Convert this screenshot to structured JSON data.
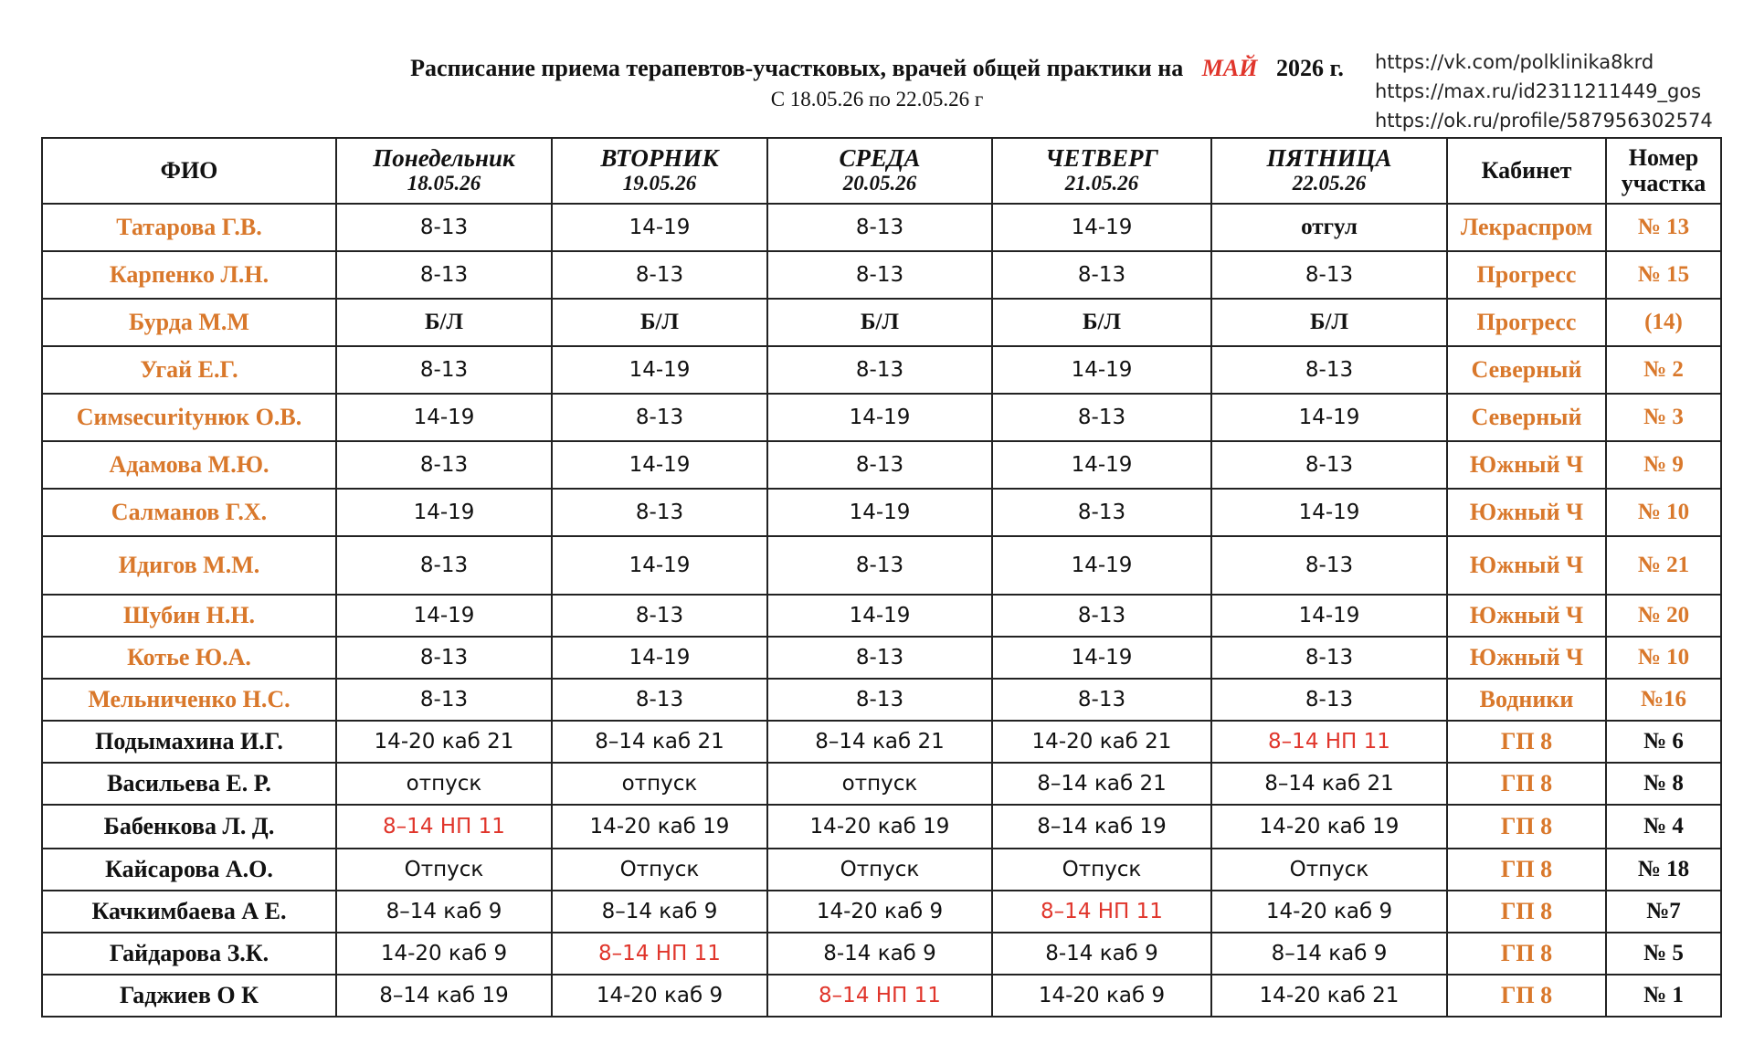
{
  "header": {
    "title_prefix": "Расписание приема терапевтов-участковых, врачей общей практики на",
    "title_month": "МАЙ",
    "title_suffix": "2026 г.",
    "subtitle": "С 18.05.26 по 22.05.26 г"
  },
  "links": [
    "https://vk.com/polklinika8krd",
    "https://max.ru/id2311211449_gos",
    "https://ok.ru/profile/587956302574"
  ],
  "columns": {
    "name": "ФИО",
    "days": [
      {
        "day": "Понедельник",
        "date": "18.05.26"
      },
      {
        "day": "ВТОРНИК",
        "date": "19.05.26"
      },
      {
        "day": "СРЕДА",
        "date": "20.05.26"
      },
      {
        "day": "ЧЕТВЕРГ",
        "date": "21.05.26"
      },
      {
        "day": "ПЯТНИЦА",
        "date": "22.05.26"
      }
    ],
    "cabinet": "Кабинет",
    "district": "Номер участка"
  },
  "colors": {
    "orange": "#d9782b",
    "red": "#e0352b",
    "text": "#111111"
  },
  "rows": [
    {
      "name": "Татарова Г.В.",
      "cells": [
        "8-13",
        "14-19",
        "8-13",
        "14-19",
        "отгул"
      ],
      "cabinet": "Лекраспром",
      "district": "№ 13"
    },
    {
      "name": "Карпенко Л.Н.",
      "cells": [
        "8-13",
        "8-13",
        "8-13",
        "8-13",
        "8-13"
      ],
      "cabinet": "Прогресс",
      "district": "№ 15"
    },
    {
      "name": "Бурда М.М",
      "cells": [
        "Б/Л",
        "Б/Л",
        "Б/Л",
        "Б/Л",
        "Б/Л"
      ],
      "cabinet": "Прогресс",
      "district": "(14)"
    },
    {
      "name": "Угай Е.Г.",
      "cells": [
        "8-13",
        "14-19",
        "8-13",
        "14-19",
        "8-13"
      ],
      "cabinet": "Северный",
      "district": "№ 2"
    },
    {
      "name": "Симsecurityнюк О.В.",
      "cells": [
        "14-19",
        "8-13",
        "14-19",
        "8-13",
        "14-19"
      ],
      "cabinet": "Северный",
      "district": "№ 3"
    },
    {
      "name": "Адамова М.Ю.",
      "cells": [
        "8-13",
        "14-19",
        "8-13",
        "14-19",
        "8-13"
      ],
      "cabinet": "Южный Ч",
      "district": "№ 9"
    },
    {
      "name": "Салманов Г.Х.",
      "cells": [
        "14-19",
        "8-13",
        "14-19",
        "8-13",
        "14-19"
      ],
      "cabinet": "Южный Ч",
      "district": "№ 10"
    },
    {
      "name": "Идигов М.М.",
      "cells": [
        "8-13",
        "14-19",
        "8-13",
        "14-19",
        "8-13"
      ],
      "cabinet": "Южный Ч",
      "district": "№ 21"
    },
    {
      "name": "Шубин Н.Н.",
      "cells": [
        "14-19",
        "8-13",
        "14-19",
        "8-13",
        "14-19"
      ],
      "cabinet": "Южный Ч",
      "district": "№ 20"
    },
    {
      "name": "Котье Ю.А.",
      "cells": [
        "8-13",
        "14-19",
        "8-13",
        "14-19",
        "8-13"
      ],
      "cabinet": "Южный Ч",
      "district": "№ 10"
    },
    {
      "name": "Мельниченко Н.С.",
      "cells": [
        "8-13",
        "8-13",
        "8-13",
        "8-13",
        "8-13"
      ],
      "cabinet": "Водники",
      "district": "№16"
    },
    {
      "name": "Подымахина И.Г.",
      "cells": [
        "14-20 каб 21",
        "8–14 каб 21",
        "8–14 каб 21",
        "14-20 каб 21",
        "8–14 НП 11"
      ],
      "cabinet": "ГП 8",
      "district": "№ 6"
    },
    {
      "name": "Васильева Е. Р.",
      "cells": [
        "отпуск",
        "отпуск",
        "отпуск",
        "8–14 каб 21",
        "8–14 каб 21"
      ],
      "cabinet": "ГП 8",
      "district": "№ 8"
    },
    {
      "name": "Бабенкова Л. Д.",
      "cells": [
        "8–14 НП 11",
        "14-20 каб 19",
        "14-20 каб 19",
        "8–14 каб 19",
        "14-20 каб 19"
      ],
      "cabinet": "ГП 8",
      "district": "№ 4"
    },
    {
      "name": "Кайсарова А.О.",
      "cells": [
        "Отпуск",
        "Отпуск",
        "Отпуск",
        "Отпуск",
        "Отпуск"
      ],
      "cabinet": "ГП 8",
      "district": "№ 18"
    },
    {
      "name": "Качкимбаева А Е.",
      "cells": [
        "8–14 каб 9",
        "8–14 каб 9",
        "14-20 каб 9",
        "8–14 НП 11",
        "14-20 каб 9"
      ],
      "cabinet": "ГП 8",
      "district": "№7"
    },
    {
      "name": "Гайдарова З.К.",
      "cells": [
        "14-20 каб 9",
        "8–14 НП 11",
        "8-14 каб 9",
        "8-14 каб 9",
        "8–14 каб 9"
      ],
      "cabinet": "ГП 8",
      "district": "№ 5"
    },
    {
      "name": "Гаджиев О К",
      "cells": [
        "8–14 каб 19",
        "14-20 каб 9",
        "8–14 НП 11",
        "14-20 каб 9",
        "14-20 каб 21"
      ],
      "cabinet": "ГП 8",
      "district": "№ 1"
    }
  ]
}
